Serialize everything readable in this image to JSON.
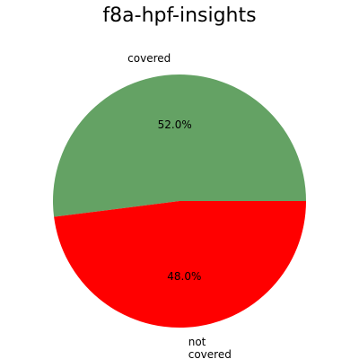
{
  "chart_data": {
    "type": "pie",
    "title": "f8a-hpf-insights",
    "slices": [
      {
        "label": "covered",
        "value": 52.0,
        "pct_label": "52.0%",
        "color": "#64a264"
      },
      {
        "label": "not\ncovered",
        "value": 48.0,
        "pct_label": "48.0%",
        "color": "#ff0000"
      }
    ],
    "start_angle_deg": 0,
    "direction": "counterclockwise",
    "legend": "none"
  }
}
